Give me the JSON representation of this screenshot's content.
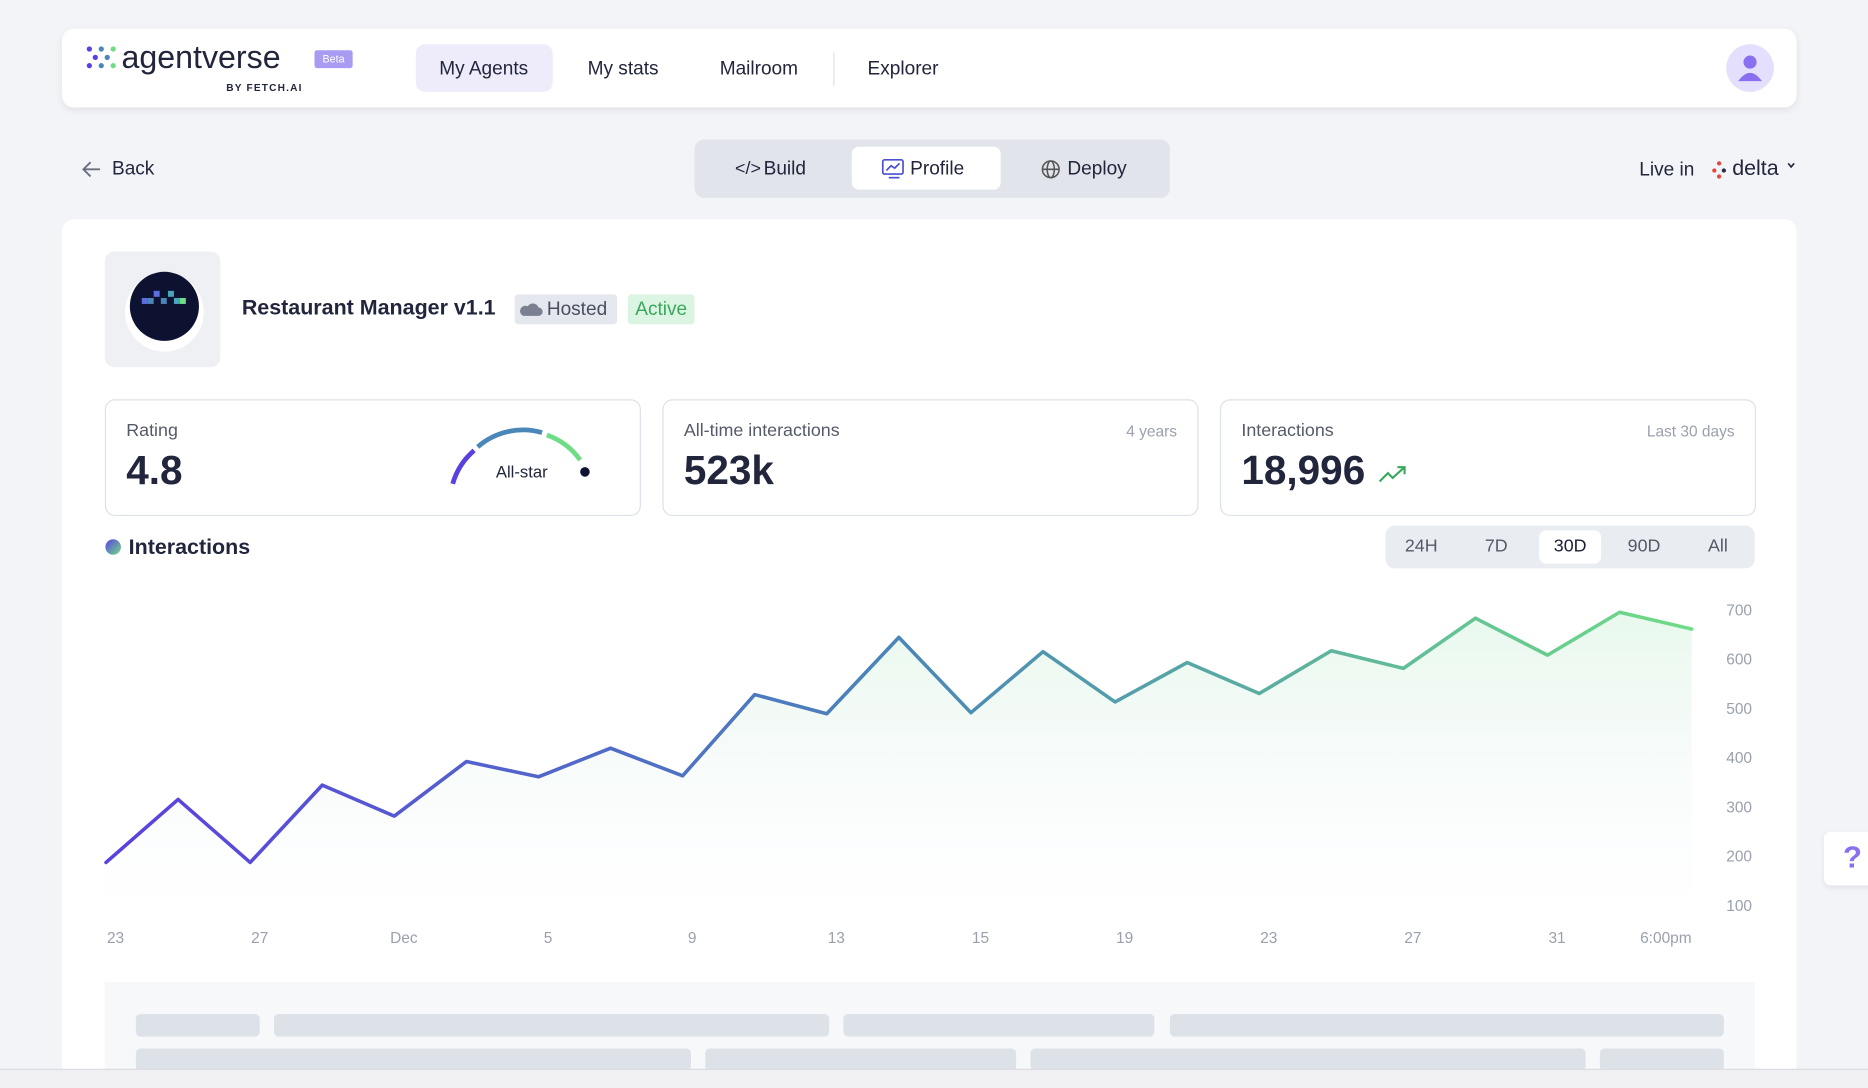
{
  "header": {
    "logo": "agentverse",
    "logo_badge": "Beta",
    "logo_sub": "BY FETCH.AI",
    "nav": [
      "My Agents",
      "My stats",
      "Mailroom",
      "Explorer"
    ]
  },
  "toolbar": {
    "back": "Back",
    "tabs": [
      "Build",
      "Profile",
      "Deploy"
    ],
    "live_in": "Live in",
    "network": "delta"
  },
  "agent": {
    "name": "Restaurant Manager v1.1",
    "badges": [
      "Hosted",
      "Active"
    ]
  },
  "stats": [
    {
      "label": "Rating",
      "value": "4.8",
      "gauge_label": "All-star"
    },
    {
      "label": "All-time interactions",
      "value": "523k",
      "note": "4 years"
    },
    {
      "label": "Interactions",
      "value": "18,996",
      "note": "Last 30 days"
    }
  ],
  "chart_data": {
    "type": "line",
    "title": "Interactions",
    "ranges": [
      "24H",
      "7D",
      "30D",
      "90D",
      "All"
    ],
    "selected_range": 2,
    "categories": [
      "23",
      null,
      "27",
      null,
      "Dec",
      null,
      "5",
      null,
      "9",
      null,
      "13",
      null,
      "15",
      null,
      "19",
      null,
      "23",
      null,
      "27",
      null,
      "31",
      null,
      "6:00pm"
    ],
    "values": [
      190,
      318,
      190,
      347,
      284,
      395,
      364,
      422,
      366,
      531,
      492,
      647,
      494,
      618,
      516,
      596,
      533,
      620,
      584,
      686,
      611,
      698,
      664
    ],
    "colors": [
      "#5b3fe0",
      "#4a86b8",
      "#6fdc86"
    ],
    "ylim": [
      100,
      700
    ],
    "yticks": [
      100,
      200,
      300,
      400,
      500,
      600,
      700
    ]
  },
  "help": "?"
}
